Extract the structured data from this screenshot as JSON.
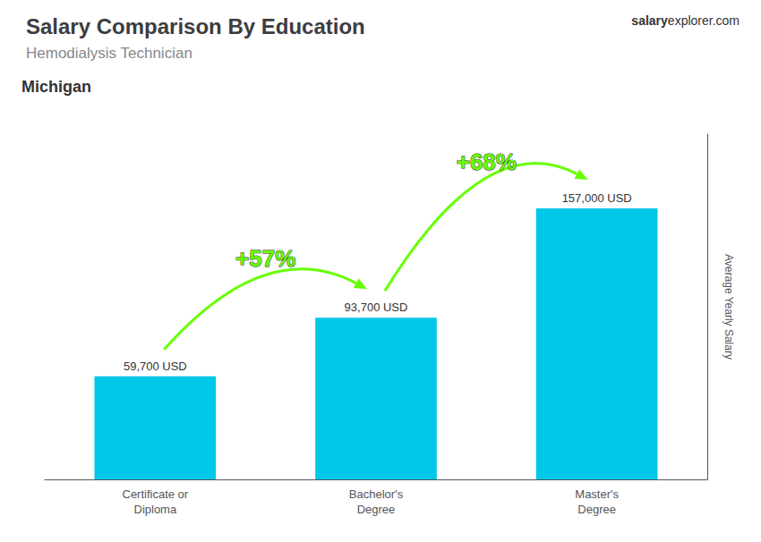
{
  "chart_data": {
    "type": "bar",
    "title": "Salary Comparison By Education",
    "subtitle": "Hemodialysis Technician",
    "location": "Michigan",
    "source": [
      "salary",
      "explorer.com"
    ],
    "ylabel": "Average Yearly Salary",
    "categories": [
      "Certificate or\nDiploma",
      "Bachelor's\nDegree",
      "Master's\nDegree"
    ],
    "values": [
      59700,
      93700,
      157000
    ],
    "value_labels": [
      "59,700 USD",
      "93,700 USD",
      "157,000 USD"
    ],
    "data_labels": true,
    "color": "#00c8e8",
    "ylim": [
      0,
      200000
    ],
    "grid": false,
    "tick_labels": "x",
    "annotations": [
      {
        "text": "+57%",
        "color": "#66ff00"
      },
      {
        "text": "+68%",
        "color": "#66ff00"
      }
    ]
  }
}
